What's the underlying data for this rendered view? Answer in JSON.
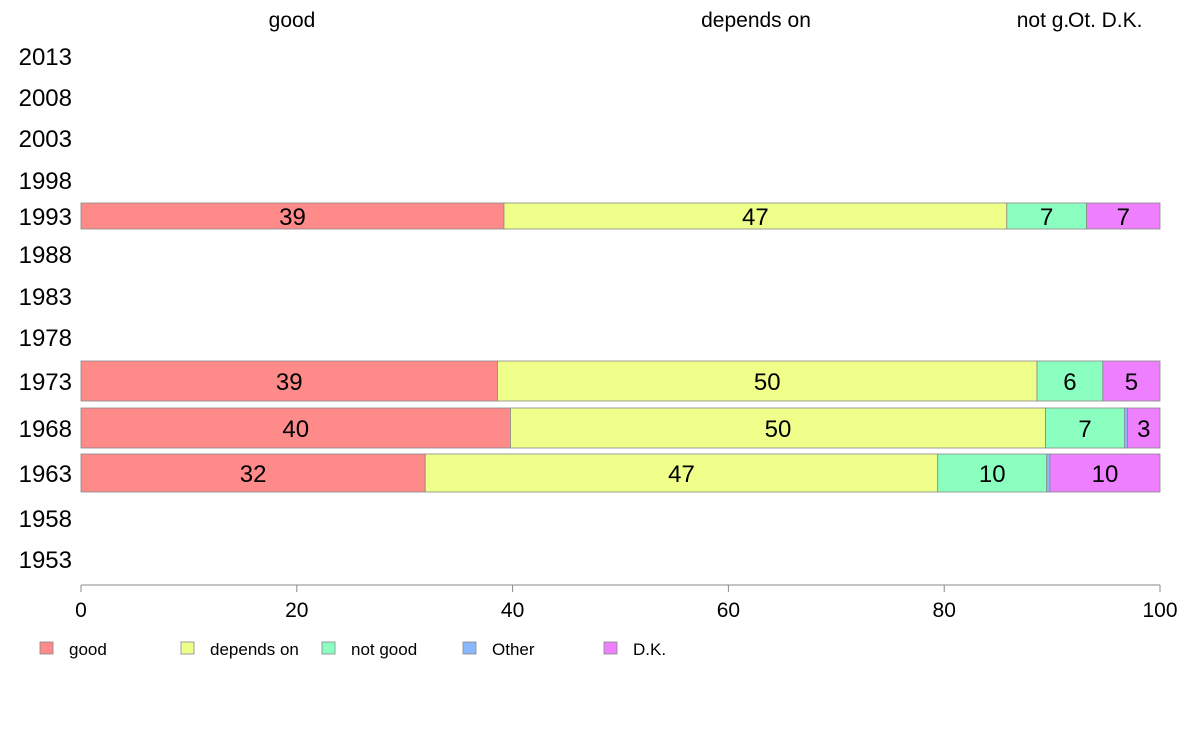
{
  "chart_data": {
    "type": "bar",
    "orientation": "horizontal",
    "stacked": true,
    "categories": [
      "2013",
      "2008",
      "2003",
      "1998",
      "1993",
      "1988",
      "1983",
      "1978",
      "1973",
      "1968",
      "1963",
      "1958",
      "1953"
    ],
    "series": [
      {
        "name": "good",
        "color": "#ff8a8a",
        "values": [
          null,
          null,
          null,
          null,
          39.2,
          null,
          null,
          null,
          38.6,
          39.8,
          31.9,
          null,
          null
        ]
      },
      {
        "name": "depends on",
        "color": "#eeff8a",
        "values": [
          null,
          null,
          null,
          null,
          46.6,
          null,
          null,
          null,
          50.0,
          49.6,
          47.5,
          null,
          null
        ]
      },
      {
        "name": "not good",
        "color": "#8affc0",
        "values": [
          null,
          null,
          null,
          null,
          7.4,
          null,
          null,
          null,
          6.1,
          7.3,
          10.1,
          null,
          null
        ]
      },
      {
        "name": "Other",
        "color": "#8ab8ff",
        "values": [
          null,
          null,
          null,
          null,
          0,
          null,
          null,
          null,
          0,
          0.3,
          0.3,
          null,
          null
        ]
      },
      {
        "name": "D.K.",
        "color": "#ee80ff",
        "values": [
          null,
          null,
          null,
          null,
          6.8,
          null,
          null,
          null,
          5.3,
          3.0,
          10.2,
          null,
          null
        ]
      }
    ],
    "bar_labels": {
      "1993": [
        "39",
        "47",
        "7",
        "",
        "7"
      ],
      "1973": [
        "39",
        "50",
        "6",
        "",
        "5"
      ],
      "1968": [
        "40",
        "50",
        "7",
        "",
        "3"
      ],
      "1963": [
        "32",
        "47",
        "10",
        "",
        "10"
      ]
    },
    "top_labels": [
      "good",
      "depends on",
      "not g.",
      "Ot.",
      "D.K."
    ],
    "xlim": [
      0,
      100
    ],
    "xticks": [
      0,
      20,
      40,
      60,
      80,
      100
    ],
    "legend": [
      "good",
      "depends on",
      "not good",
      "Other",
      "D.K."
    ],
    "legend_position": "bottom-left",
    "grid": false
  }
}
